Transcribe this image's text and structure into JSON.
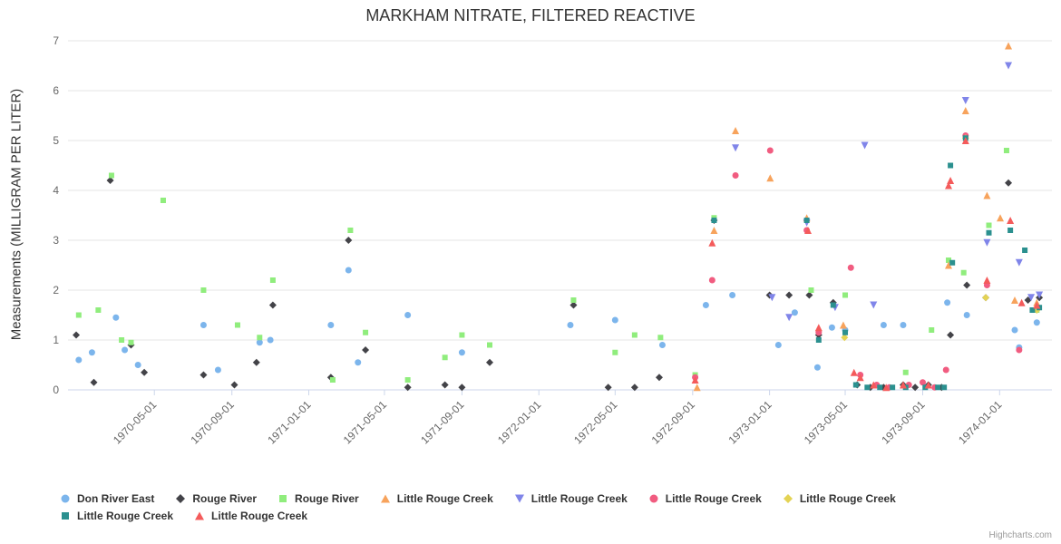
{
  "credits": {
    "label": "Highcharts.com"
  },
  "chart_data": {
    "type": "scatter",
    "title": "MARKHAM NITRATE, FILTERED REACTIVE",
    "xlabel": "",
    "ylabel": "Measurements (MILLIGRAM PER LITER)",
    "ylim": [
      0,
      7
    ],
    "y_ticks": [
      0,
      1,
      2,
      3,
      4,
      5,
      6,
      7
    ],
    "x_ticks": [
      "1970-05-01",
      "1970-09-01",
      "1971-01-01",
      "1971-05-01",
      "1971-09-01",
      "1972-01-01",
      "1972-05-01",
      "1972-09-01",
      "1973-01-01",
      "1973-05-01",
      "1973-09-01",
      "1974-01-01"
    ],
    "x_range": [
      "1969-12-15",
      "1974-03-25"
    ],
    "grid": "horizontal",
    "legend_position": "bottom",
    "series": [
      {
        "name": "Don River East",
        "color": "#7cb5ec",
        "marker": "circle",
        "points": [
          [
            "1970-01-01",
            0.6
          ],
          [
            "1970-01-22",
            0.75
          ],
          [
            "1970-03-01",
            1.45
          ],
          [
            "1970-03-15",
            0.8
          ],
          [
            "1970-04-05",
            0.5
          ],
          [
            "1970-07-18",
            1.3
          ],
          [
            "1970-08-10",
            0.4
          ],
          [
            "1970-10-15",
            0.95
          ],
          [
            "1970-11-01",
            1.0
          ],
          [
            "1971-02-05",
            1.3
          ],
          [
            "1971-03-05",
            2.4
          ],
          [
            "1971-03-20",
            0.55
          ],
          [
            "1971-06-07",
            1.5
          ],
          [
            "1971-09-01",
            0.75
          ],
          [
            "1972-02-20",
            1.3
          ],
          [
            "1972-05-01",
            1.4
          ],
          [
            "1972-07-15",
            0.9
          ],
          [
            "1972-09-22",
            1.7
          ],
          [
            "1972-11-03",
            1.9
          ],
          [
            "1973-01-15",
            0.9
          ],
          [
            "1973-02-10",
            1.55
          ],
          [
            "1973-03-18",
            0.45
          ],
          [
            "1973-04-10",
            1.25
          ],
          [
            "1973-05-01",
            1.2
          ],
          [
            "1973-07-01",
            1.3
          ],
          [
            "1973-08-01",
            1.3
          ],
          [
            "1973-10-10",
            1.75
          ],
          [
            "1973-11-10",
            1.5
          ],
          [
            "1974-01-25",
            1.2
          ],
          [
            "1974-02-01",
            0.85
          ],
          [
            "1974-03-01",
            1.35
          ]
        ]
      },
      {
        "name": "Rouge River",
        "color": "#434348",
        "marker": "diamond",
        "points": [
          [
            "1969-12-28",
            1.1
          ],
          [
            "1970-01-25",
            0.15
          ],
          [
            "1970-02-20",
            4.2
          ],
          [
            "1970-03-25",
            0.9
          ],
          [
            "1970-04-15",
            0.35
          ],
          [
            "1970-07-18",
            0.3
          ],
          [
            "1970-09-05",
            0.1
          ],
          [
            "1970-10-10",
            0.55
          ],
          [
            "1970-11-05",
            1.7
          ],
          [
            "1971-02-05",
            0.25
          ],
          [
            "1971-03-05",
            3.0
          ],
          [
            "1971-04-01",
            0.8
          ],
          [
            "1971-06-07",
            0.05
          ],
          [
            "1971-08-05",
            0.1
          ],
          [
            "1971-09-01",
            0.05
          ],
          [
            "1971-10-15",
            0.55
          ],
          [
            "1972-02-25",
            1.7
          ],
          [
            "1972-04-20",
            0.05
          ],
          [
            "1972-06-01",
            0.05
          ],
          [
            "1972-07-10",
            0.25
          ],
          [
            "1972-10-05",
            3.4
          ],
          [
            "1973-01-01",
            1.9
          ],
          [
            "1973-02-01",
            1.9
          ],
          [
            "1973-03-05",
            1.9
          ],
          [
            "1973-03-20",
            1.1
          ],
          [
            "1973-04-12",
            1.75
          ],
          [
            "1973-05-20",
            0.1
          ],
          [
            "1973-06-10",
            0.05
          ],
          [
            "1973-07-01",
            0.05
          ],
          [
            "1973-08-01",
            0.1
          ],
          [
            "1973-08-20",
            0.05
          ],
          [
            "1973-09-10",
            0.1
          ],
          [
            "1973-10-01",
            0.05
          ],
          [
            "1973-10-15",
            1.1
          ],
          [
            "1973-11-10",
            2.1
          ],
          [
            "1973-12-10",
            1.85
          ],
          [
            "1974-01-15",
            4.15
          ],
          [
            "1974-02-15",
            1.8
          ],
          [
            "1974-03-05",
            1.85
          ]
        ]
      },
      {
        "name": "Rouge River",
        "color": "#90ed7d",
        "marker": "square",
        "points": [
          [
            "1970-01-01",
            1.5
          ],
          [
            "1970-02-01",
            1.6
          ],
          [
            "1970-02-22",
            4.3
          ],
          [
            "1970-03-10",
            1.0
          ],
          [
            "1970-03-25",
            0.95
          ],
          [
            "1970-05-15",
            3.8
          ],
          [
            "1970-07-18",
            2.0
          ],
          [
            "1970-09-10",
            1.3
          ],
          [
            "1970-10-15",
            1.05
          ],
          [
            "1970-11-05",
            2.2
          ],
          [
            "1971-02-08",
            0.2
          ],
          [
            "1971-03-08",
            3.2
          ],
          [
            "1971-04-01",
            1.15
          ],
          [
            "1971-06-07",
            0.2
          ],
          [
            "1971-08-05",
            0.65
          ],
          [
            "1971-09-01",
            1.1
          ],
          [
            "1971-10-15",
            0.9
          ],
          [
            "1972-02-25",
            1.8
          ],
          [
            "1972-05-01",
            0.75
          ],
          [
            "1972-06-01",
            1.1
          ],
          [
            "1972-07-12",
            1.05
          ],
          [
            "1972-09-05",
            0.3
          ],
          [
            "1972-10-05",
            3.45
          ],
          [
            "1973-03-08",
            2.0
          ],
          [
            "1973-05-01",
            1.9
          ],
          [
            "1973-08-05",
            0.35
          ],
          [
            "1973-09-15",
            1.2
          ],
          [
            "1973-10-12",
            2.6
          ],
          [
            "1973-11-05",
            2.35
          ],
          [
            "1973-12-15",
            3.3
          ],
          [
            "1974-01-12",
            4.8
          ],
          [
            "1974-03-01",
            1.6
          ]
        ]
      },
      {
        "name": "Little Rouge Creek",
        "color": "#f7a35c",
        "marker": "triangle",
        "points": [
          [
            "1972-09-08",
            0.05
          ],
          [
            "1972-10-05",
            3.2
          ],
          [
            "1972-11-08",
            5.2
          ],
          [
            "1973-01-02",
            4.25
          ],
          [
            "1973-03-01",
            3.45
          ],
          [
            "1973-04-28",
            1.3
          ],
          [
            "1973-10-12",
            2.5
          ],
          [
            "1973-11-08",
            5.6
          ],
          [
            "1973-12-12",
            3.9
          ],
          [
            "1974-01-02",
            3.45
          ],
          [
            "1974-01-15",
            6.9
          ],
          [
            "1974-01-25",
            1.8
          ],
          [
            "1974-03-01",
            1.75
          ]
        ]
      },
      {
        "name": "Little Rouge Creek",
        "color": "#8085e9",
        "marker": "triangle-down",
        "points": [
          [
            "1972-11-08",
            4.85
          ],
          [
            "1973-01-05",
            1.85
          ],
          [
            "1973-02-01",
            1.45
          ],
          [
            "1973-03-01",
            3.35
          ],
          [
            "1973-04-15",
            1.65
          ],
          [
            "1973-06-01",
            4.9
          ],
          [
            "1973-06-15",
            1.7
          ],
          [
            "1973-11-08",
            5.8
          ],
          [
            "1973-12-12",
            2.95
          ],
          [
            "1974-01-15",
            6.5
          ],
          [
            "1974-02-01",
            2.55
          ],
          [
            "1974-02-20",
            1.85
          ],
          [
            "1974-03-05",
            1.9
          ]
        ]
      },
      {
        "name": "Little Rouge Creek",
        "color": "#f15c80",
        "marker": "circle",
        "points": [
          [
            "1972-09-05",
            0.25
          ],
          [
            "1972-10-02",
            2.2
          ],
          [
            "1972-11-08",
            4.3
          ],
          [
            "1973-01-02",
            4.8
          ],
          [
            "1973-03-01",
            3.2
          ],
          [
            "1973-03-20",
            1.15
          ],
          [
            "1973-05-10",
            2.45
          ],
          [
            "1973-05-25",
            0.3
          ],
          [
            "1973-06-20",
            0.1
          ],
          [
            "1973-07-10",
            0.05
          ],
          [
            "1973-08-10",
            0.1
          ],
          [
            "1973-09-01",
            0.15
          ],
          [
            "1973-09-20",
            0.05
          ],
          [
            "1973-10-08",
            0.4
          ],
          [
            "1973-11-08",
            5.1
          ],
          [
            "1973-12-12",
            2.1
          ],
          [
            "1974-02-01",
            0.8
          ]
        ]
      },
      {
        "name": "Little Rouge Creek",
        "color": "#e4d354",
        "marker": "diamond",
        "points": [
          [
            "1973-04-30",
            1.05
          ],
          [
            "1973-11-08",
            5.05
          ],
          [
            "1973-12-10",
            1.85
          ],
          [
            "1974-03-01",
            1.6
          ]
        ]
      },
      {
        "name": "Little Rouge Creek",
        "color": "#2b908f",
        "marker": "square",
        "points": [
          [
            "1972-10-05",
            3.4
          ],
          [
            "1973-03-01",
            3.4
          ],
          [
            "1973-03-20",
            1.0
          ],
          [
            "1973-04-12",
            1.7
          ],
          [
            "1973-05-01",
            1.15
          ],
          [
            "1973-05-18",
            0.1
          ],
          [
            "1973-06-05",
            0.05
          ],
          [
            "1973-06-25",
            0.05
          ],
          [
            "1973-07-15",
            0.05
          ],
          [
            "1973-08-05",
            0.05
          ],
          [
            "1973-09-05",
            0.05
          ],
          [
            "1973-09-25",
            0.05
          ],
          [
            "1973-10-05",
            0.05
          ],
          [
            "1973-10-15",
            4.5
          ],
          [
            "1973-10-18",
            2.55
          ],
          [
            "1973-11-08",
            5.05
          ],
          [
            "1973-12-15",
            3.15
          ],
          [
            "1974-01-18",
            3.2
          ],
          [
            "1974-02-10",
            2.8
          ],
          [
            "1974-02-22",
            1.6
          ],
          [
            "1974-03-05",
            1.65
          ]
        ]
      },
      {
        "name": "Little Rouge Creek",
        "color": "#f45b5b",
        "marker": "triangle",
        "points": [
          [
            "1972-09-05",
            0.2
          ],
          [
            "1972-10-02",
            2.95
          ],
          [
            "1973-03-03",
            3.2
          ],
          [
            "1973-03-20",
            1.25
          ],
          [
            "1973-05-15",
            0.35
          ],
          [
            "1973-05-25",
            0.25
          ],
          [
            "1973-06-15",
            0.1
          ],
          [
            "1973-07-05",
            0.05
          ],
          [
            "1973-08-01",
            0.1
          ],
          [
            "1973-09-10",
            0.1
          ],
          [
            "1973-10-12",
            4.1
          ],
          [
            "1973-10-15",
            4.2
          ],
          [
            "1973-11-08",
            5.0
          ],
          [
            "1973-12-12",
            2.2
          ],
          [
            "1974-01-18",
            3.4
          ],
          [
            "1974-02-05",
            1.75
          ],
          [
            "1974-03-01",
            1.7
          ]
        ]
      }
    ]
  }
}
